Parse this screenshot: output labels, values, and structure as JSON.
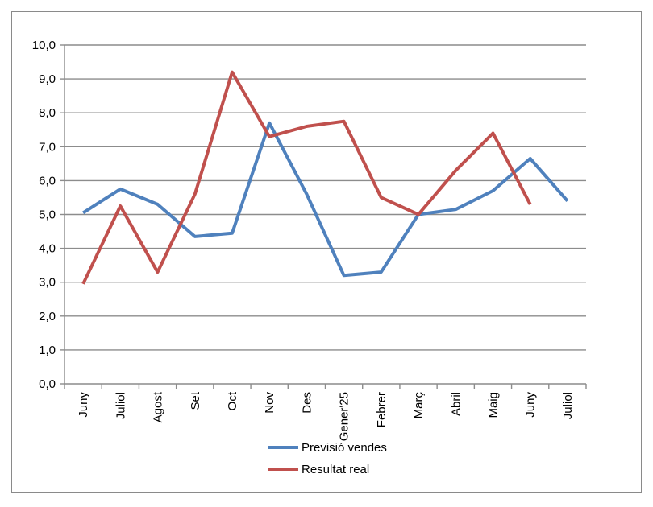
{
  "chart_data": {
    "type": "line",
    "categories": [
      "Juny",
      "Juliol",
      "Agost",
      "Set",
      "Oct",
      "Nov",
      "Des",
      "Gener'25",
      "Febrer",
      "Març",
      "Abril",
      "Maig",
      "Juny",
      "Juliol"
    ],
    "series": [
      {
        "name": "Previsió vendes",
        "color": "#4f81bd",
        "values": [
          5.05,
          5.75,
          5.3,
          4.35,
          4.45,
          7.7,
          5.6,
          3.2,
          3.3,
          5.0,
          5.15,
          5.7,
          6.65,
          5.4
        ]
      },
      {
        "name": "Resultat real",
        "color": "#c0504d",
        "values": [
          2.95,
          5.25,
          3.3,
          5.6,
          9.2,
          7.3,
          7.6,
          7.75,
          5.5,
          5.0,
          6.3,
          7.4,
          5.3,
          null
        ]
      }
    ],
    "yticks": [
      "0,0",
      "1,0",
      "2,0",
      "3,0",
      "4,0",
      "5,0",
      "6,0",
      "7,0",
      "8,0",
      "9,0",
      "10,0"
    ],
    "ylim": [
      0,
      10
    ],
    "grid": true,
    "legend_position": "bottom"
  }
}
